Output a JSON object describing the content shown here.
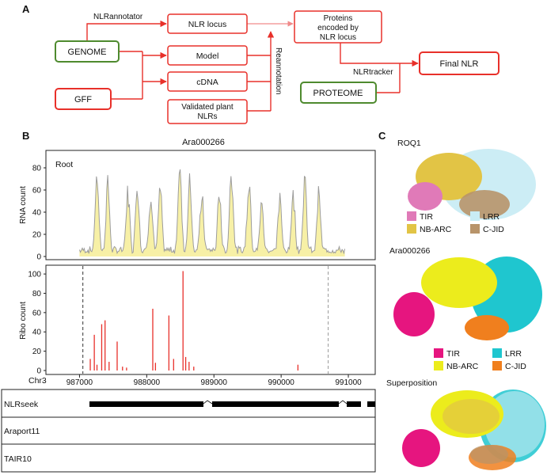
{
  "panel_a": {
    "label": "A",
    "genome": "GENOME",
    "gff": "GFF",
    "nlr_locus": "NLR locus",
    "model": "Model",
    "cdna": "cDNA",
    "validated_line1": "Validated plant",
    "validated_line2": "NLRs",
    "proteins_line1": "Proteins",
    "proteins_line2": "encoded by",
    "proteins_line3": "NLR locus",
    "proteome": "PROTEOME",
    "final_nlr": "Final NLR",
    "nlrannotator": "NLRannotator",
    "nlrtracker": "NLRtracker",
    "reannotation": "Reannotation"
  },
  "panel_b": {
    "label": "B",
    "title": "Ara000266",
    "root_label": "Root",
    "rna_ylabel": "RNA count",
    "ribo_ylabel": "Ribo count",
    "chrom": "Chr3",
    "track_nlrseek": "NLRseek",
    "track_araport": "Araport11",
    "track_tair": "TAIR10"
  },
  "panel_c": {
    "label": "C",
    "roq1": "ROQ1",
    "ara": "Ara000266",
    "superposition": "Superposition",
    "legend_roq1": [
      {
        "label": "TIR",
        "color": "#e07ab8"
      },
      {
        "label": "LRR",
        "color": "#c9ecf4"
      },
      {
        "label": "NB-ARC",
        "color": "#e2c445"
      },
      {
        "label": "C-JID",
        "color": "#b8946a"
      }
    ],
    "legend_ara": [
      {
        "label": "TIR",
        "color": "#e6157f"
      },
      {
        "label": "LRR",
        "color": "#1fc6cf"
      },
      {
        "label": "NB-ARC",
        "color": "#ecec1c"
      },
      {
        "label": "C-JID",
        "color": "#f07f1e"
      }
    ]
  },
  "chart_data": [
    {
      "type": "area",
      "title": "Ara000266",
      "ylabel": "RNA count",
      "annotation": "Root",
      "xlim": [
        986500,
        991400
      ],
      "ylim": [
        0,
        90
      ],
      "yticks": [
        0,
        20,
        40,
        60,
        80
      ],
      "peaks": [
        {
          "x": 987260,
          "y": 78
        },
        {
          "x": 987420,
          "y": 66
        },
        {
          "x": 987720,
          "y": 60
        },
        {
          "x": 987860,
          "y": 68
        },
        {
          "x": 988060,
          "y": 59
        },
        {
          "x": 988200,
          "y": 60
        },
        {
          "x": 988490,
          "y": 83
        },
        {
          "x": 988640,
          "y": 70
        },
        {
          "x": 988820,
          "y": 58
        },
        {
          "x": 989080,
          "y": 56
        },
        {
          "x": 989260,
          "y": 80
        },
        {
          "x": 989520,
          "y": 74
        },
        {
          "x": 989710,
          "y": 48
        },
        {
          "x": 989980,
          "y": 50
        },
        {
          "x": 990180,
          "y": 57
        },
        {
          "x": 990350,
          "y": 69
        },
        {
          "x": 990560,
          "y": 56
        }
      ]
    },
    {
      "type": "bar",
      "ylabel": "Ribo count",
      "xlabel": "Chr3",
      "xlim": [
        986500,
        991400
      ],
      "ylim": [
        0,
        105
      ],
      "yticks": [
        0,
        20,
        40,
        60,
        80,
        100
      ],
      "xticks": [
        987000,
        988000,
        989000,
        990000,
        991000
      ],
      "markers": [
        987050,
        990700
      ],
      "bars": [
        {
          "x": 987160,
          "y": 12
        },
        {
          "x": 987220,
          "y": 37
        },
        {
          "x": 987260,
          "y": 6
        },
        {
          "x": 987330,
          "y": 48
        },
        {
          "x": 987380,
          "y": 52
        },
        {
          "x": 987440,
          "y": 9
        },
        {
          "x": 987560,
          "y": 30
        },
        {
          "x": 987640,
          "y": 4
        },
        {
          "x": 987700,
          "y": 3
        },
        {
          "x": 988090,
          "y": 64
        },
        {
          "x": 988130,
          "y": 8
        },
        {
          "x": 988330,
          "y": 57
        },
        {
          "x": 988400,
          "y": 12
        },
        {
          "x": 988540,
          "y": 103
        },
        {
          "x": 988580,
          "y": 14
        },
        {
          "x": 988630,
          "y": 9
        },
        {
          "x": 988700,
          "y": 4
        },
        {
          "x": 990250,
          "y": 6
        }
      ]
    }
  ]
}
